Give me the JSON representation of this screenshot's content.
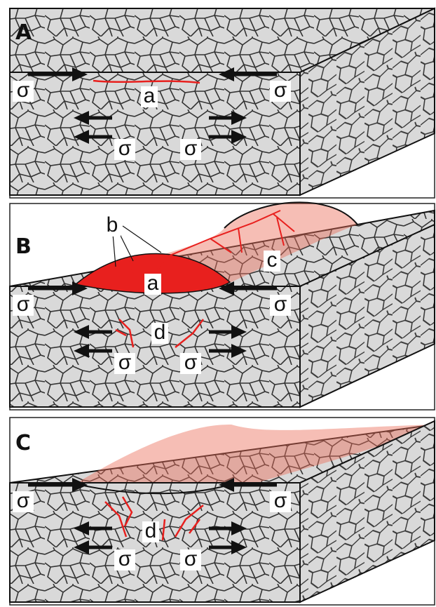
{
  "panels": [
    {
      "label": "A",
      "stress_labels": [
        "σ",
        "σ",
        "σ",
        "σ"
      ],
      "annotations": [
        "a"
      ]
    },
    {
      "label": "B",
      "stress_labels": [
        "σ",
        "σ",
        "σ",
        "σ"
      ],
      "annotations": [
        "b",
        "a",
        "c",
        "d"
      ]
    },
    {
      "label": "C",
      "stress_labels": [
        "σ",
        "σ",
        "σ",
        "σ"
      ],
      "annotations": [
        "d"
      ]
    }
  ]
}
